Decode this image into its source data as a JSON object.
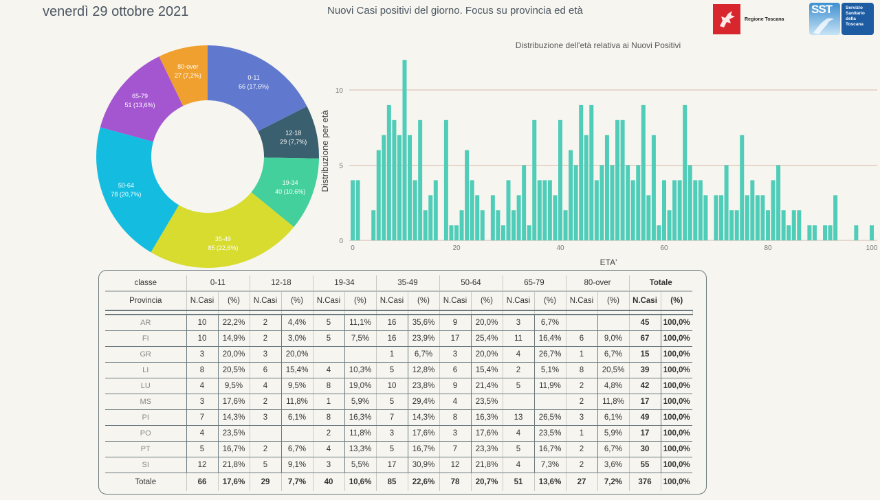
{
  "header": {
    "date": "venerdì 29 ottobre 2021",
    "title": "Nuovi Casi positivi del giorno. Focus su provincia ed età",
    "logo_region": "Regione Toscana",
    "logo_sst_abbr": "SST",
    "logo_sst_text": [
      "Servizio",
      "Sanitario",
      "della",
      "Toscana"
    ]
  },
  "colors": {
    "background": "#f6f5ef",
    "bar": "#4fcdb8",
    "gridline": "#d9b8a8"
  },
  "chart_data": [
    {
      "type": "pie",
      "subtype": "donut",
      "title": "",
      "slices": [
        {
          "label": "0-11",
          "value": 66,
          "pct": "17,6%",
          "color": "#6079ce"
        },
        {
          "label": "12-18",
          "value": 29,
          "pct": "7,7%",
          "color": "#3a5f6e"
        },
        {
          "label": "19-34",
          "value": 40,
          "pct": "10,6%",
          "color": "#43d09d"
        },
        {
          "label": "35-49",
          "value": 85,
          "pct": "22,6%",
          "color": "#d7dc2e"
        },
        {
          "label": "50-64",
          "value": 78,
          "pct": "20,7%",
          "color": "#14bde0"
        },
        {
          "label": "65-79",
          "value": 51,
          "pct": "13,6%",
          "color": "#a455d0"
        },
        {
          "label": "80-over",
          "value": 27,
          "pct": "7,2%",
          "color": "#f0a02e"
        }
      ]
    },
    {
      "type": "bar",
      "title": "Distribuzione dell'età relativa ai Nuovi Positivi",
      "xlabel": "ETA'",
      "ylabel": "Distribuzione per età",
      "xlim": [
        0,
        100
      ],
      "ylim": [
        0,
        12
      ],
      "xticks": [
        0,
        20,
        40,
        60,
        80,
        100
      ],
      "yticks": [
        0,
        5,
        10
      ],
      "grid": true,
      "x": [
        0,
        1,
        2,
        3,
        4,
        5,
        6,
        7,
        8,
        9,
        10,
        11,
        12,
        13,
        14,
        15,
        16,
        17,
        18,
        19,
        20,
        21,
        22,
        23,
        24,
        25,
        26,
        27,
        28,
        29,
        30,
        31,
        32,
        33,
        34,
        35,
        36,
        37,
        38,
        39,
        40,
        41,
        42,
        43,
        44,
        45,
        46,
        47,
        48,
        49,
        50,
        51,
        52,
        53,
        54,
        55,
        56,
        57,
        58,
        59,
        60,
        61,
        62,
        63,
        64,
        65,
        66,
        67,
        68,
        69,
        70,
        71,
        72,
        73,
        74,
        75,
        76,
        77,
        78,
        79,
        80,
        81,
        82,
        83,
        84,
        85,
        86,
        87,
        88,
        89,
        90,
        91,
        92,
        93,
        94,
        95,
        96,
        97,
        98,
        99,
        100
      ],
      "values": [
        4,
        4,
        0,
        0,
        2,
        6,
        7,
        9,
        8,
        7,
        12,
        7,
        4,
        8,
        2,
        3,
        4,
        0,
        8,
        1,
        1,
        2,
        6,
        4,
        3,
        2,
        0,
        3,
        2,
        1,
        4,
        2,
        3,
        5,
        1,
        8,
        4,
        4,
        4,
        3,
        8,
        2,
        6,
        5,
        9,
        7,
        9,
        4,
        5,
        7,
        5,
        8,
        8,
        5,
        4,
        5,
        9,
        3,
        7,
        1,
        4,
        2,
        4,
        4,
        9,
        5,
        4,
        4,
        3,
        0,
        3,
        3,
        5,
        2,
        2,
        7,
        3,
        4,
        3,
        3,
        2,
        4,
        5,
        2,
        1,
        2,
        2,
        0,
        1,
        1,
        0,
        1,
        1,
        3,
        0,
        0,
        0,
        1,
        0,
        0,
        1
      ]
    }
  ],
  "table": {
    "corner_top": "classe",
    "corner_bottom": "Provincia",
    "classes": [
      "0-11",
      "12-18",
      "19-34",
      "35-49",
      "50-64",
      "65-79",
      "80-over",
      "Totale"
    ],
    "sub_n": "N.Casi",
    "sub_p": "(%)",
    "rows": [
      {
        "prov": "AR",
        "cells": [
          "10",
          "22,2%",
          "2",
          "4,4%",
          "5",
          "11,1%",
          "16",
          "35,6%",
          "9",
          "20,0%",
          "3",
          "6,7%",
          "",
          "",
          "45",
          "100,0%"
        ]
      },
      {
        "prov": "FI",
        "cells": [
          "10",
          "14,9%",
          "2",
          "3,0%",
          "5",
          "7,5%",
          "16",
          "23,9%",
          "17",
          "25,4%",
          "11",
          "16,4%",
          "6",
          "9,0%",
          "67",
          "100,0%"
        ]
      },
      {
        "prov": "GR",
        "cells": [
          "3",
          "20,0%",
          "3",
          "20,0%",
          "",
          "",
          "1",
          "6,7%",
          "3",
          "20,0%",
          "4",
          "26,7%",
          "1",
          "6,7%",
          "15",
          "100,0%"
        ]
      },
      {
        "prov": "LI",
        "cells": [
          "8",
          "20,5%",
          "6",
          "15,4%",
          "4",
          "10,3%",
          "5",
          "12,8%",
          "6",
          "15,4%",
          "2",
          "5,1%",
          "8",
          "20,5%",
          "39",
          "100,0%"
        ]
      },
      {
        "prov": "LU",
        "cells": [
          "4",
          "9,5%",
          "4",
          "9,5%",
          "8",
          "19,0%",
          "10",
          "23,8%",
          "9",
          "21,4%",
          "5",
          "11,9%",
          "2",
          "4,8%",
          "42",
          "100,0%"
        ]
      },
      {
        "prov": "MS",
        "cells": [
          "3",
          "17,6%",
          "2",
          "11,8%",
          "1",
          "5,9%",
          "5",
          "29,4%",
          "4",
          "23,5%",
          "",
          "",
          "2",
          "11,8%",
          "17",
          "100,0%"
        ]
      },
      {
        "prov": "PI",
        "cells": [
          "7",
          "14,3%",
          "3",
          "6,1%",
          "8",
          "16,3%",
          "7",
          "14,3%",
          "8",
          "16,3%",
          "13",
          "26,5%",
          "3",
          "6,1%",
          "49",
          "100,0%"
        ]
      },
      {
        "prov": "PO",
        "cells": [
          "4",
          "23,5%",
          "",
          "",
          "2",
          "11,8%",
          "3",
          "17,6%",
          "3",
          "17,6%",
          "4",
          "23,5%",
          "1",
          "5,9%",
          "17",
          "100,0%"
        ]
      },
      {
        "prov": "PT",
        "cells": [
          "5",
          "16,7%",
          "2",
          "6,7%",
          "4",
          "13,3%",
          "5",
          "16,7%",
          "7",
          "23,3%",
          "5",
          "16,7%",
          "2",
          "6,7%",
          "30",
          "100,0%"
        ]
      },
      {
        "prov": "SI",
        "cells": [
          "12",
          "21,8%",
          "5",
          "9,1%",
          "3",
          "5,5%",
          "17",
          "30,9%",
          "12",
          "21,8%",
          "4",
          "7,3%",
          "2",
          "3,6%",
          "55",
          "100,0%"
        ]
      }
    ],
    "total": {
      "prov": "Totale",
      "cells": [
        "66",
        "17,6%",
        "29",
        "7,7%",
        "40",
        "10,6%",
        "85",
        "22,6%",
        "78",
        "20,7%",
        "51",
        "13,6%",
        "27",
        "7,2%",
        "376",
        "100,0%"
      ]
    }
  }
}
